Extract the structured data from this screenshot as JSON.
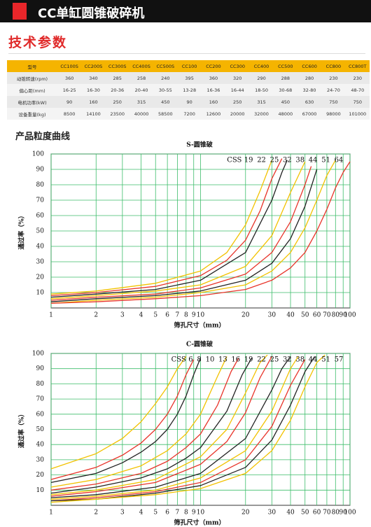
{
  "header": {
    "title": "CC单缸圆锥破碎机"
  },
  "specs": {
    "title": "技术参数",
    "columns": [
      "型号",
      "CC100S",
      "CC200S",
      "CC300S",
      "CC400S",
      "CC500S",
      "CC100",
      "CC200",
      "CC300",
      "CC400",
      "CC500",
      "CC600",
      "CC800",
      "CC800T"
    ],
    "rows": [
      [
        "动锥转速(rpm)",
        360,
        340,
        285,
        258,
        240,
        395,
        360,
        320,
        290,
        288,
        280,
        230,
        230
      ],
      [
        "偏心距(mm)",
        "16-25",
        "16-30",
        "20-36",
        "20-40",
        "30-55",
        "13-28",
        "16-36",
        "16-44",
        "18-50",
        "30-68",
        "32-80",
        "24-70",
        "48-70"
      ],
      [
        "电机功率(kW)",
        90,
        160,
        250,
        315,
        450,
        90,
        160,
        250,
        315,
        450,
        630,
        750,
        750
      ],
      [
        "设备重量(kg)",
        8500,
        14100,
        23500,
        40000,
        58500,
        7200,
        12600,
        20000,
        32000,
        48000,
        67000,
        98000,
        101000
      ]
    ]
  },
  "curves_title": "产品粒度曲线",
  "chart_data": [
    {
      "type": "line",
      "title": "S-圆锥破",
      "xlabel": "筛孔尺寸（mm）",
      "ylabel": "通过率（%）",
      "legend_title": "CSS",
      "xscale": "log",
      "xlim": [
        1,
        100
      ],
      "ylim": [
        0,
        100
      ],
      "grid": true,
      "xticks": [
        1,
        2,
        3,
        4,
        5,
        6,
        7,
        8,
        9,
        10,
        20,
        30,
        40,
        50,
        60,
        70,
        80,
        90,
        100
      ],
      "yticks": [
        10,
        20,
        30,
        40,
        50,
        60,
        70,
        80,
        90,
        100
      ],
      "series": [
        {
          "name": "19",
          "color": "#f2c200",
          "x": [
            1,
            2,
            5,
            10,
            15,
            20,
            25,
            30
          ],
          "values": [
            9,
            11,
            16,
            24,
            36,
            54,
            76,
            96
          ]
        },
        {
          "name": "22",
          "color": "#e8342a",
          "x": [
            1,
            2,
            5,
            10,
            15,
            20,
            25,
            30,
            35
          ],
          "values": [
            8,
            10,
            14,
            21,
            31,
            44,
            63,
            84,
            97
          ]
        },
        {
          "name": "25",
          "color": "#222222",
          "x": [
            1,
            2,
            5,
            10,
            20,
            30,
            35,
            38
          ],
          "values": [
            7,
            9,
            12,
            18,
            36,
            70,
            88,
            96
          ]
        },
        {
          "name": "32",
          "color": "#f2c200",
          "x": [
            1,
            2,
            5,
            10,
            20,
            30,
            40,
            50
          ],
          "values": [
            6,
            8,
            11,
            15,
            27,
            47,
            75,
            95
          ]
        },
        {
          "name": "38",
          "color": "#e8342a",
          "x": [
            1,
            2,
            5,
            10,
            20,
            30,
            40,
            50,
            55
          ],
          "values": [
            5,
            7,
            9,
            13,
            22,
            36,
            56,
            80,
            92
          ]
        },
        {
          "name": "44",
          "color": "#222222",
          "x": [
            1,
            2,
            5,
            10,
            20,
            30,
            40,
            50,
            60
          ],
          "values": [
            4,
            6,
            8,
            11,
            18,
            29,
            45,
            66,
            90
          ]
        },
        {
          "name": "51",
          "color": "#f2c200",
          "x": [
            1,
            2,
            5,
            10,
            20,
            30,
            40,
            50,
            60,
            70,
            80
          ],
          "values": [
            3,
            5,
            7,
            10,
            15,
            24,
            36,
            52,
            70,
            86,
            96
          ]
        },
        {
          "name": "64",
          "color": "#e8342a",
          "x": [
            1,
            2,
            5,
            10,
            20,
            30,
            40,
            50,
            60,
            70,
            80,
            90,
            100
          ],
          "values": [
            3,
            4,
            6,
            8,
            12,
            18,
            26,
            36,
            50,
            64,
            78,
            88,
            95
          ]
        }
      ]
    },
    {
      "type": "line",
      "title": "C-圆锥破",
      "xlabel": "筛孔尺寸（mm）",
      "ylabel": "通过率（%）",
      "legend_title": "CSS",
      "xscale": "log",
      "xlim": [
        1,
        100
      ],
      "ylim": [
        0,
        100
      ],
      "grid": true,
      "xticks": [
        1,
        2,
        3,
        4,
        5,
        6,
        7,
        8,
        9,
        10,
        20,
        30,
        40,
        50,
        60,
        70,
        80,
        90,
        100
      ],
      "yticks": [
        10,
        20,
        30,
        40,
        50,
        60,
        70,
        80,
        90,
        100
      ],
      "series": [
        {
          "name": "6",
          "color": "#f2c200",
          "x": [
            1,
            2,
            3,
            4,
            5,
            6,
            7,
            8
          ],
          "values": [
            24,
            34,
            44,
            55,
            67,
            78,
            90,
            98
          ]
        },
        {
          "name": "8",
          "color": "#e8342a",
          "x": [
            1,
            2,
            3,
            4,
            5,
            6,
            7,
            8,
            9
          ],
          "values": [
            17,
            25,
            33,
            41,
            50,
            60,
            72,
            86,
            96
          ]
        },
        {
          "name": "10",
          "color": "#222222",
          "x": [
            1,
            2,
            3,
            4,
            5,
            6,
            7,
            8,
            9,
            10
          ],
          "values": [
            15,
            21,
            28,
            35,
            42,
            50,
            60,
            72,
            86,
            97
          ]
        },
        {
          "name": "13",
          "color": "#f2c200",
          "x": [
            1,
            2,
            4,
            6,
            8,
            10,
            13,
            15
          ],
          "values": [
            12,
            17,
            26,
            36,
            47,
            60,
            85,
            98
          ]
        },
        {
          "name": "16",
          "color": "#e8342a",
          "x": [
            1,
            2,
            4,
            6,
            8,
            10,
            13,
            16,
            18
          ],
          "values": [
            10,
            14,
            21,
            29,
            38,
            47,
            66,
            88,
            97
          ]
        },
        {
          "name": "19",
          "color": "#222222",
          "x": [
            1,
            2,
            4,
            6,
            8,
            10,
            15,
            19,
            22
          ],
          "values": [
            8,
            12,
            18,
            24,
            31,
            38,
            62,
            86,
            97
          ]
        },
        {
          "name": "22",
          "color": "#f2c200",
          "x": [
            1,
            2,
            5,
            10,
            15,
            20,
            25,
            28
          ],
          "values": [
            7,
            10,
            17,
            32,
            50,
            74,
            94,
            99
          ]
        },
        {
          "name": "25",
          "color": "#e8342a",
          "x": [
            1,
            2,
            5,
            10,
            15,
            20,
            25,
            30
          ],
          "values": [
            6,
            9,
            15,
            27,
            42,
            61,
            84,
            98
          ]
        },
        {
          "name": "32",
          "color": "#222222",
          "x": [
            1,
            2,
            5,
            10,
            20,
            30,
            35,
            40
          ],
          "values": [
            5,
            7,
            12,
            21,
            44,
            76,
            90,
            98
          ]
        },
        {
          "name": "38",
          "color": "#f2c200",
          "x": [
            1,
            2,
            5,
            10,
            20,
            30,
            40,
            45
          ],
          "values": [
            4,
            6,
            10,
            18,
            36,
            62,
            90,
            98
          ]
        },
        {
          "name": "44",
          "color": "#e8342a",
          "x": [
            1,
            2,
            5,
            10,
            20,
            30,
            40,
            50
          ],
          "values": [
            3,
            5,
            9,
            15,
            30,
            52,
            79,
            96
          ]
        },
        {
          "name": "51",
          "color": "#222222",
          "x": [
            1,
            2,
            5,
            10,
            20,
            30,
            40,
            50,
            58
          ],
          "values": [
            3,
            4,
            8,
            13,
            25,
            43,
            66,
            88,
            98
          ]
        },
        {
          "name": "57",
          "color": "#f2c200",
          "x": [
            1,
            2,
            5,
            10,
            20,
            30,
            40,
            50,
            60,
            68
          ],
          "values": [
            2,
            4,
            7,
            11,
            21,
            36,
            56,
            78,
            94,
            99
          ]
        }
      ]
    }
  ]
}
